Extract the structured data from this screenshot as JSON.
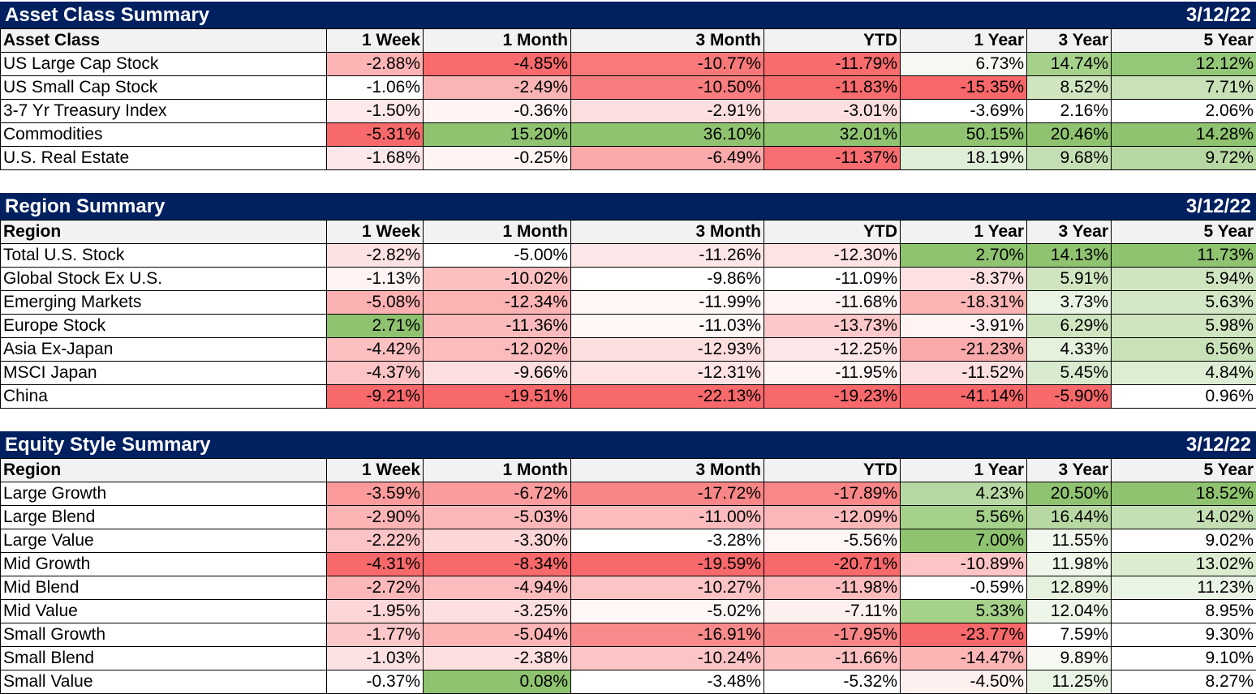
{
  "columns": [
    "1 Week",
    "1 Month",
    "3 Month",
    "YTD",
    "1 Year",
    "3 Year",
    "5 Year"
  ],
  "sections": [
    {
      "title": "Asset Class Summary",
      "date": "3/12/22",
      "first_col_header": "Asset Class",
      "rows": [
        {
          "label": "US Large Cap Stock",
          "cells": [
            [
              "-2.88%",
              "#fcb4b5"
            ],
            [
              "-4.85%",
              "#f86a6c"
            ],
            [
              "-10.77%",
              "#f9797a"
            ],
            [
              "-11.79%",
              "#f86c6e"
            ],
            [
              "6.73%",
              "#f5f9f1"
            ],
            [
              "14.74%",
              "#a6d18b"
            ],
            [
              "12.12%",
              "#94c778"
            ]
          ]
        },
        {
          "label": "US Small Cap Stock",
          "cells": [
            [
              "-1.06%",
              "#ffffff"
            ],
            [
              "-2.49%",
              "#fbb4b5"
            ],
            [
              "-10.50%",
              "#f97d7e"
            ],
            [
              "-11.83%",
              "#f86c6e"
            ],
            [
              "-15.35%",
              "#f86769"
            ],
            [
              "8.52%",
              "#cfe5c0"
            ],
            [
              "7.71%",
              "#c8e1b8"
            ]
          ]
        },
        {
          "label": "3-7 Yr Treasury Index",
          "cells": [
            [
              "-1.50%",
              "#fee9ea"
            ],
            [
              "-0.36%",
              "#fff3f3"
            ],
            [
              "-2.91%",
              "#fddfe0"
            ],
            [
              "-3.01%",
              "#fddfe0"
            ],
            [
              "-3.69%",
              "#ffffff"
            ],
            [
              "2.16%",
              "#ffffff"
            ],
            [
              "2.06%",
              "#ffffff"
            ]
          ]
        },
        {
          "label": "Commodities",
          "cells": [
            [
              "-5.31%",
              "#f8696b"
            ],
            [
              "15.20%",
              "#8fc370"
            ],
            [
              "36.10%",
              "#8fc370"
            ],
            [
              "32.01%",
              "#8fc370"
            ],
            [
              "50.15%",
              "#8fc370"
            ],
            [
              "20.46%",
              "#8fc370"
            ],
            [
              "14.28%",
              "#8fc370"
            ]
          ]
        },
        {
          "label": "U.S. Real Estate",
          "cells": [
            [
              "-1.68%",
              "#fee7e8"
            ],
            [
              "-0.25%",
              "#fff3f3"
            ],
            [
              "-6.49%",
              "#faa9aa"
            ],
            [
              "-11.37%",
              "#f86d6f"
            ],
            [
              "18.19%",
              "#dfeed6"
            ],
            [
              "9.68%",
              "#c4dfb4"
            ],
            [
              "9.72%",
              "#b7d8a3"
            ]
          ]
        }
      ]
    },
    {
      "title": "Region Summary",
      "date": "3/12/22",
      "first_col_header": "Region",
      "rows": [
        {
          "label": "Total U.S. Stock",
          "cells": [
            [
              "-2.82%",
              "#fde2e3"
            ],
            [
              "-5.00%",
              "#ffffff"
            ],
            [
              "-11.26%",
              "#fde6e7"
            ],
            [
              "-12.30%",
              "#fde3e4"
            ],
            [
              "2.70%",
              "#8fc370"
            ],
            [
              "14.13%",
              "#8fc370"
            ],
            [
              "11.73%",
              "#8fc370"
            ]
          ]
        },
        {
          "label": "Global Stock Ex U.S.",
          "cells": [
            [
              "-1.13%",
              "#fff3f3"
            ],
            [
              "-10.02%",
              "#fcc0c1"
            ],
            [
              "-9.86%",
              "#ffffff"
            ],
            [
              "-11.09%",
              "#ffffff"
            ],
            [
              "-8.37%",
              "#fde0e1"
            ],
            [
              "5.91%",
              "#cfe5c0"
            ],
            [
              "5.94%",
              "#cfe5c0"
            ]
          ]
        },
        {
          "label": "Emerging Markets",
          "cells": [
            [
              "-5.08%",
              "#fbb0b1"
            ],
            [
              "-12.34%",
              "#fbb3b4"
            ],
            [
              "-11.99%",
              "#fff6f6"
            ],
            [
              "-11.68%",
              "#fff3f3"
            ],
            [
              "-18.31%",
              "#fcb4b5"
            ],
            [
              "3.73%",
              "#eaf4e4"
            ],
            [
              "5.63%",
              "#d2e7c5"
            ]
          ]
        },
        {
          "label": "Europe Stock",
          "cells": [
            [
              "2.71%",
              "#8fc370"
            ],
            [
              "-11.36%",
              "#fbbabb"
            ],
            [
              "-11.03%",
              "#fff6f6"
            ],
            [
              "-13.73%",
              "#fcc8c9"
            ],
            [
              "-3.91%",
              "#fff3f3"
            ],
            [
              "6.29%",
              "#cfe5c0"
            ],
            [
              "5.98%",
              "#cfe5c0"
            ]
          ]
        },
        {
          "label": "Asia Ex-Japan",
          "cells": [
            [
              "-4.42%",
              "#fcc0c1"
            ],
            [
              "-12.02%",
              "#fcbcbd"
            ],
            [
              "-12.93%",
              "#fddfe0"
            ],
            [
              "-12.25%",
              "#fde6e7"
            ],
            [
              "-21.23%",
              "#faa9aa"
            ],
            [
              "4.33%",
              "#e5f1dd"
            ],
            [
              "6.56%",
              "#c8e1b8"
            ]
          ]
        },
        {
          "label": "MSCI Japan",
          "cells": [
            [
              "-4.37%",
              "#fcc4c5"
            ],
            [
              "-9.66%",
              "#fddfe0"
            ],
            [
              "-12.31%",
              "#fde3e4"
            ],
            [
              "-11.95%",
              "#fff3f3"
            ],
            [
              "-11.52%",
              "#fddfe0"
            ],
            [
              "5.45%",
              "#d9ebcf"
            ],
            [
              "4.84%",
              "#ddedd3"
            ]
          ]
        },
        {
          "label": "China",
          "cells": [
            [
              "-9.21%",
              "#f8696b"
            ],
            [
              "-19.51%",
              "#f8696b"
            ],
            [
              "-22.13%",
              "#f8696b"
            ],
            [
              "-19.23%",
              "#f8696b"
            ],
            [
              "-41.14%",
              "#f8696b"
            ],
            [
              "-5.90%",
              "#f8696b"
            ],
            [
              "0.96%",
              "#ffffff"
            ]
          ]
        }
      ]
    },
    {
      "title": "Equity Style Summary",
      "date": "3/12/22",
      "first_col_header": "Region",
      "rows": [
        {
          "label": "Large Growth",
          "cells": [
            [
              "-3.59%",
              "#fa9a9b"
            ],
            [
              "-6.72%",
              "#fa9c9d"
            ],
            [
              "-17.72%",
              "#f98687"
            ],
            [
              "-17.89%",
              "#f98788"
            ],
            [
              "4.23%",
              "#b7d8a3"
            ],
            [
              "20.50%",
              "#8fc370"
            ],
            [
              "18.52%",
              "#8fc370"
            ]
          ]
        },
        {
          "label": "Large Blend",
          "cells": [
            [
              "-2.90%",
              "#fcb4b5"
            ],
            [
              "-5.03%",
              "#fcb8b9"
            ],
            [
              "-11.00%",
              "#fcbcbd"
            ],
            [
              "-12.09%",
              "#fcb8b9"
            ],
            [
              "5.56%",
              "#a6d18b"
            ],
            [
              "16.44%",
              "#b7d8a3"
            ],
            [
              "14.02%",
              "#c4dfb4"
            ]
          ]
        },
        {
          "label": "Large Value",
          "cells": [
            [
              "-2.22%",
              "#fcc4c5"
            ],
            [
              "-3.30%",
              "#fdd6d7"
            ],
            [
              "-3.28%",
              "#ffffff"
            ],
            [
              "-5.56%",
              "#fff6f6"
            ],
            [
              "7.00%",
              "#8fc370"
            ],
            [
              "11.55%",
              "#f1f7ed"
            ],
            [
              "9.02%",
              "#ffffff"
            ]
          ]
        },
        {
          "label": "Mid Growth",
          "cells": [
            [
              "-4.31%",
              "#f8696b"
            ],
            [
              "-8.34%",
              "#f8696b"
            ],
            [
              "-19.59%",
              "#f8696b"
            ],
            [
              "-20.71%",
              "#f8696b"
            ],
            [
              "-10.89%",
              "#fcc4c5"
            ],
            [
              "11.98%",
              "#eef6ea"
            ],
            [
              "13.02%",
              "#dbecd0"
            ]
          ]
        },
        {
          "label": "Mid Blend",
          "cells": [
            [
              "-2.72%",
              "#fcb8b9"
            ],
            [
              "-4.94%",
              "#fcbcbd"
            ],
            [
              "-10.27%",
              "#fcc4c5"
            ],
            [
              "-11.98%",
              "#fcbcbd"
            ],
            [
              "-0.59%",
              "#ffffff"
            ],
            [
              "12.89%",
              "#e5f1dd"
            ],
            [
              "11.23%",
              "#eaf4e4"
            ]
          ]
        },
        {
          "label": "Mid Value",
          "cells": [
            [
              "-1.95%",
              "#fdd6d7"
            ],
            [
              "-3.25%",
              "#fddfe0"
            ],
            [
              "-5.02%",
              "#fff6f6"
            ],
            [
              "-7.11%",
              "#fff0f0"
            ],
            [
              "5.33%",
              "#a6d18b"
            ],
            [
              "12.04%",
              "#eef6ea"
            ],
            [
              "8.95%",
              "#ffffff"
            ]
          ]
        },
        {
          "label": "Small Growth",
          "cells": [
            [
              "-1.77%",
              "#fcc8c9"
            ],
            [
              "-5.04%",
              "#fcb4b5"
            ],
            [
              "-16.91%",
              "#f98a8b"
            ],
            [
              "-17.95%",
              "#f98687"
            ],
            [
              "-23.77%",
              "#f8696b"
            ],
            [
              "7.59%",
              "#ffffff"
            ],
            [
              "9.30%",
              "#ffffff"
            ]
          ]
        },
        {
          "label": "Small Blend",
          "cells": [
            [
              "-1.03%",
              "#fde2e3"
            ],
            [
              "-2.38%",
              "#fddfe0"
            ],
            [
              "-10.24%",
              "#fcc4c5"
            ],
            [
              "-11.66%",
              "#fcc0c1"
            ],
            [
              "-14.47%",
              "#fcb4b5"
            ],
            [
              "9.89%",
              "#f5f9f1"
            ],
            [
              "9.10%",
              "#ffffff"
            ]
          ]
        },
        {
          "label": "Small Value",
          "cells": [
            [
              "-0.37%",
              "#ffffff"
            ],
            [
              "0.08%",
              "#8fc370"
            ],
            [
              "-3.48%",
              "#ffffff"
            ],
            [
              "-5.32%",
              "#ffffff"
            ],
            [
              "-4.50%",
              "#fff0f0"
            ],
            [
              "11.25%",
              "#eaf4e4"
            ],
            [
              "8.27%",
              "#ffffff"
            ]
          ]
        }
      ]
    }
  ]
}
